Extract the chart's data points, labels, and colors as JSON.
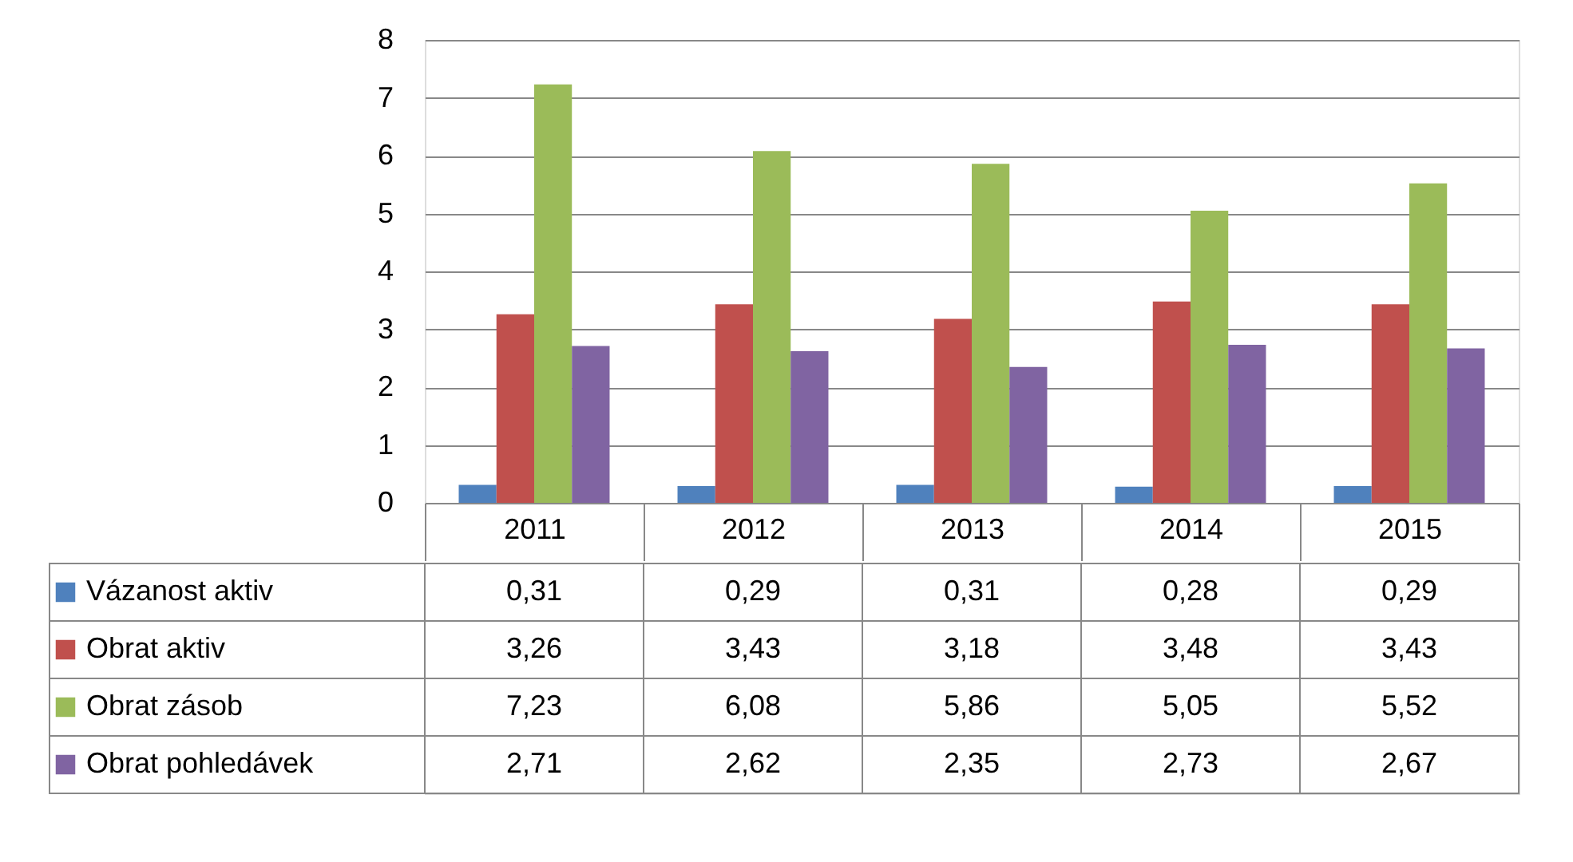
{
  "chart_data": {
    "type": "bar",
    "categories": [
      "2011",
      "2012",
      "2013",
      "2014",
      "2015"
    ],
    "series": [
      {
        "name": "Vázanost aktiv",
        "color": "#4f81bd",
        "values": [
          0.31,
          0.29,
          0.31,
          0.28,
          0.29
        ],
        "value_labels": [
          "0,31",
          "0,29",
          "0,31",
          "0,28",
          "0,29"
        ]
      },
      {
        "name": "Obrat aktiv",
        "color": "#c0504d",
        "values": [
          3.26,
          3.43,
          3.18,
          3.48,
          3.43
        ],
        "value_labels": [
          "3,26",
          "3,43",
          "3,18",
          "3,48",
          "3,43"
        ]
      },
      {
        "name": "Obrat zásob",
        "color": "#9bbb59",
        "values": [
          7.23,
          6.08,
          5.86,
          5.05,
          5.52
        ],
        "value_labels": [
          "7,23",
          "6,08",
          "5,86",
          "5,05",
          "5,52"
        ]
      },
      {
        "name": "Obrat pohledávek",
        "color": "#8064a2",
        "values": [
          2.71,
          2.62,
          2.35,
          2.73,
          2.67
        ],
        "value_labels": [
          "2,71",
          "2,62",
          "2,35",
          "2,73",
          "2,67"
        ]
      }
    ],
    "ylim": [
      0,
      8
    ],
    "yticks": [
      0,
      1,
      2,
      3,
      4,
      5,
      6,
      7,
      8
    ],
    "grid": "y",
    "legend": "bottom"
  }
}
